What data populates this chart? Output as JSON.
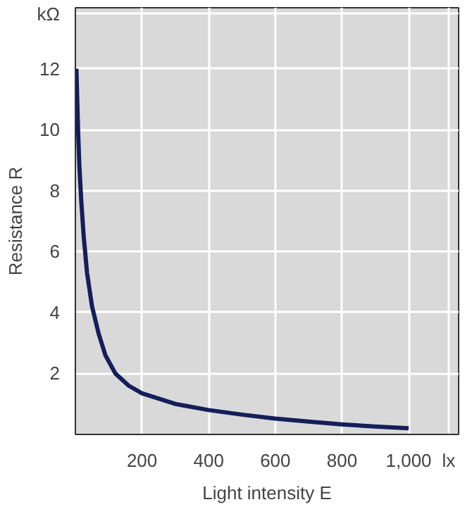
{
  "chart_data": {
    "type": "line",
    "xlabel": "Light intensity E",
    "ylabel": "Resistance R",
    "x": [
      3,
      8,
      12,
      18,
      25,
      35,
      50,
      70,
      90,
      120,
      160,
      200,
      300,
      400,
      500,
      600,
      700,
      800,
      900,
      1000
    ],
    "series": [
      {
        "color": "#141e5a",
        "values": [
          12,
          10,
          8.8,
          7.6,
          6.5,
          5.3,
          4.2,
          3.3,
          2.6,
          2.0,
          1.6,
          1.35,
          1.0,
          0.8,
          0.65,
          0.52,
          0.42,
          0.33,
          0.26,
          0.2
        ]
      }
    ],
    "xlim": [
      0,
      1150
    ],
    "xticks": [
      200,
      400,
      600,
      800,
      {
        "value": 1000,
        "label": "1,000"
      },
      {
        "value": 1120,
        "label": "lx"
      }
    ],
    "ylim": [
      0,
      14
    ],
    "yticks": [
      2,
      4,
      6,
      8,
      10,
      12,
      {
        "value": 13.8,
        "label": "kΩ"
      }
    ],
    "grid": true,
    "marker": "none",
    "line_style": "solid"
  }
}
